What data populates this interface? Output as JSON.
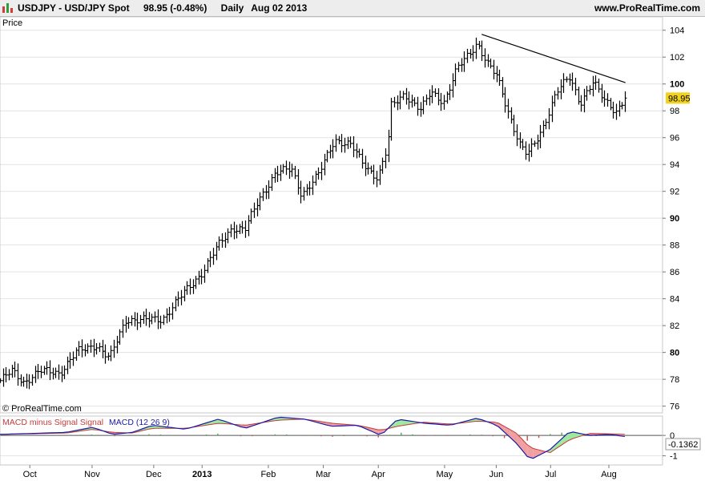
{
  "header": {
    "symbol": "USDJPY - USD/JPY Spot",
    "price_change": "98.95 (-0.48%)",
    "period": "Daily",
    "date": "Aug 02 2013",
    "website": "www.ProRealTime.com"
  },
  "price_panel": {
    "label": "Price",
    "copyright": "© ProRealTime.com",
    "last_price_badge": "98.95",
    "badge_color": "#f2d21c"
  },
  "macd_panel": {
    "legend_hist": "MACD minus Signal Signal",
    "legend_macd": "MACD (12 26 9)",
    "last_value_badge": "-0.1362",
    "macd_color": "#1a1aa8",
    "signal_color": "#c23b3b",
    "positive_color": "#9fe89f",
    "negative_color": "#f0a0a0"
  },
  "colors": {
    "bars": "#000000",
    "trendline": "#000000",
    "grid": "#e2e2e2"
  },
  "chart_data": [
    {
      "type": "bar",
      "series_kind": "OHLC price bars",
      "ylim": [
        75.5,
        105
      ],
      "y_ticks": [
        76,
        78,
        80,
        82,
        84,
        86,
        88,
        90,
        92,
        94,
        96,
        98,
        100,
        102,
        104
      ],
      "y_ticks_bold": [
        80,
        90,
        100
      ],
      "x_tick_labels": [
        "Oct",
        "Nov",
        "Dec",
        "2013",
        "Feb",
        "Mar",
        "Apr",
        "May",
        "Jun",
        "Jul",
        "Aug"
      ],
      "x_tick_positions": [
        0.045,
        0.139,
        0.232,
        0.305,
        0.405,
        0.488,
        0.571,
        0.671,
        0.749,
        0.831,
        0.919
      ],
      "close_path": [
        [
          0.0,
          77.9
        ],
        [
          0.018,
          78.6
        ],
        [
          0.035,
          77.8
        ],
        [
          0.06,
          78.6
        ],
        [
          0.09,
          78.5
        ],
        [
          0.115,
          80.0
        ],
        [
          0.145,
          80.6
        ],
        [
          0.165,
          79.5
        ],
        [
          0.19,
          82.5
        ],
        [
          0.22,
          82.4
        ],
        [
          0.245,
          82.5
        ],
        [
          0.27,
          84.0
        ],
        [
          0.305,
          86.0
        ],
        [
          0.33,
          88.0
        ],
        [
          0.35,
          89.3
        ],
        [
          0.37,
          89.2
        ],
        [
          0.39,
          91.3
        ],
        [
          0.415,
          93.4
        ],
        [
          0.44,
          93.6
        ],
        [
          0.455,
          91.8
        ],
        [
          0.48,
          93.2
        ],
        [
          0.505,
          95.9
        ],
        [
          0.53,
          95.4
        ],
        [
          0.545,
          94.2
        ],
        [
          0.57,
          93.0
        ],
        [
          0.585,
          95.3
        ],
        [
          0.59,
          98.3
        ],
        [
          0.61,
          99.3
        ],
        [
          0.635,
          98.0
        ],
        [
          0.65,
          99.4
        ],
        [
          0.67,
          98.7
        ],
        [
          0.69,
          101.1
        ],
        [
          0.71,
          102.4
        ],
        [
          0.72,
          103.1
        ],
        [
          0.735,
          101.5
        ],
        [
          0.75,
          100.5
        ],
        [
          0.77,
          97.5
        ],
        [
          0.785,
          95.4
        ],
        [
          0.795,
          94.7
        ],
        [
          0.805,
          95.4
        ],
        [
          0.82,
          96.9
        ],
        [
          0.84,
          99.4
        ],
        [
          0.86,
          100.5
        ],
        [
          0.875,
          98.6
        ],
        [
          0.895,
          100.1
        ],
        [
          0.91,
          98.9
        ],
        [
          0.93,
          98.0
        ],
        [
          0.943,
          98.9
        ]
      ],
      "trendline": {
        "x": [
          0.727,
          0.944
        ],
        "y": [
          103.7,
          100.1
        ]
      },
      "last_value": 98.95
    },
    {
      "type": "line",
      "series_kind": "MACD (12 26 9) with MACD minus Signal histogram",
      "ylim": [
        -1.45,
        0.95
      ],
      "y_ticks": [
        -1,
        0
      ],
      "series": [
        {
          "name": "MACD",
          "points": [
            [
              0.0,
              0.05
            ],
            [
              0.05,
              0.1
            ],
            [
              0.1,
              0.15
            ],
            [
              0.14,
              0.4
            ],
            [
              0.17,
              0.05
            ],
            [
              0.2,
              0.15
            ],
            [
              0.23,
              0.5
            ],
            [
              0.28,
              0.3
            ],
            [
              0.33,
              0.8
            ],
            [
              0.37,
              0.35
            ],
            [
              0.42,
              0.9
            ],
            [
              0.46,
              0.8
            ],
            [
              0.5,
              0.45
            ],
            [
              0.54,
              0.5
            ],
            [
              0.575,
              0.0
            ],
            [
              0.6,
              0.8
            ],
            [
              0.64,
              0.6
            ],
            [
              0.68,
              0.5
            ],
            [
              0.72,
              0.85
            ],
            [
              0.75,
              0.5
            ],
            [
              0.78,
              -0.4
            ],
            [
              0.8,
              -1.2
            ],
            [
              0.83,
              -0.7
            ],
            [
              0.86,
              0.2
            ],
            [
              0.89,
              0.0
            ],
            [
              0.92,
              0.05
            ],
            [
              0.943,
              -0.05
            ]
          ]
        },
        {
          "name": "Signal",
          "points": [
            [
              0.0,
              0.05
            ],
            [
              0.05,
              0.08
            ],
            [
              0.1,
              0.12
            ],
            [
              0.14,
              0.3
            ],
            [
              0.17,
              0.15
            ],
            [
              0.2,
              0.12
            ],
            [
              0.23,
              0.35
            ],
            [
              0.28,
              0.35
            ],
            [
              0.33,
              0.6
            ],
            [
              0.37,
              0.5
            ],
            [
              0.42,
              0.75
            ],
            [
              0.46,
              0.8
            ],
            [
              0.5,
              0.6
            ],
            [
              0.54,
              0.5
            ],
            [
              0.575,
              0.25
            ],
            [
              0.6,
              0.45
            ],
            [
              0.64,
              0.65
            ],
            [
              0.68,
              0.55
            ],
            [
              0.72,
              0.7
            ],
            [
              0.75,
              0.65
            ],
            [
              0.78,
              0.1
            ],
            [
              0.8,
              -0.6
            ],
            [
              0.83,
              -0.85
            ],
            [
              0.86,
              -0.2
            ],
            [
              0.89,
              0.1
            ],
            [
              0.92,
              0.08
            ],
            [
              0.943,
              0.05
            ]
          ]
        }
      ],
      "last_value": -0.1362
    }
  ]
}
